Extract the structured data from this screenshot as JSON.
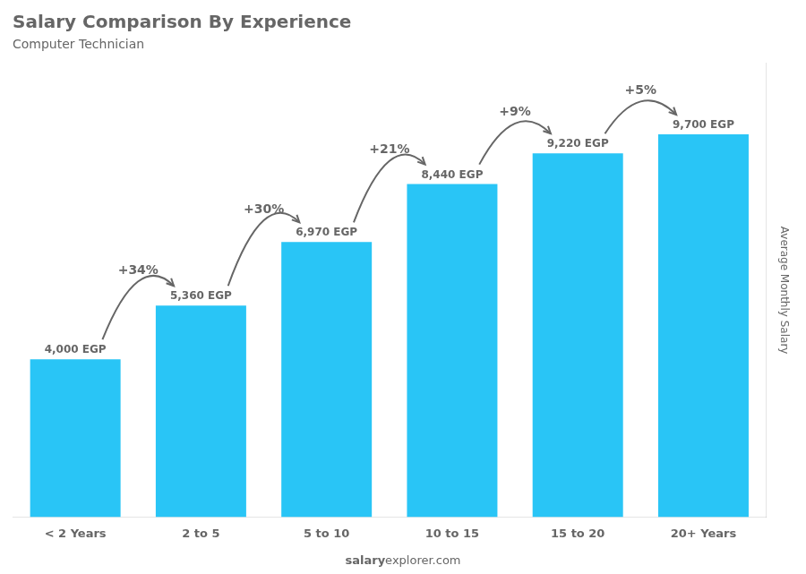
{
  "chart_data": {
    "type": "bar",
    "title": "Salary Comparison By Experience",
    "subtitle": "Computer Technician",
    "ylabel": "Average Monthly Salary",
    "categories": [
      "< 2 Years",
      "2 to 5",
      "5 to 10",
      "10 to 15",
      "15 to 20",
      "20+ Years"
    ],
    "values": [
      4000,
      5360,
      6970,
      8440,
      9220,
      9700
    ],
    "value_labels": [
      "4,000 EGP",
      "5,360 EGP",
      "6,970 EGP",
      "8,440 EGP",
      "9,220 EGP",
      "9,700 EGP"
    ],
    "data_labels": true,
    "color": "#29c5f6",
    "ylim": [
      0,
      11500
    ],
    "grid": false,
    "tick_labels": "x",
    "annotations": [
      {
        "text": "+34%",
        "from": "< 2 Years",
        "to": "2 to 5"
      },
      {
        "text": "+30%",
        "from": "2 to 5",
        "to": "5 to 10"
      },
      {
        "text": "+21%",
        "from": "5 to 10",
        "to": "10 to 15"
      },
      {
        "text": "+9%",
        "from": "10 to 15",
        "to": "15 to 20"
      },
      {
        "text": "+5%",
        "from": "15 to 20",
        "to": "20+ Years"
      },
      {
        "text": "salary"
      },
      {
        "text": "explorer.com"
      }
    ]
  }
}
